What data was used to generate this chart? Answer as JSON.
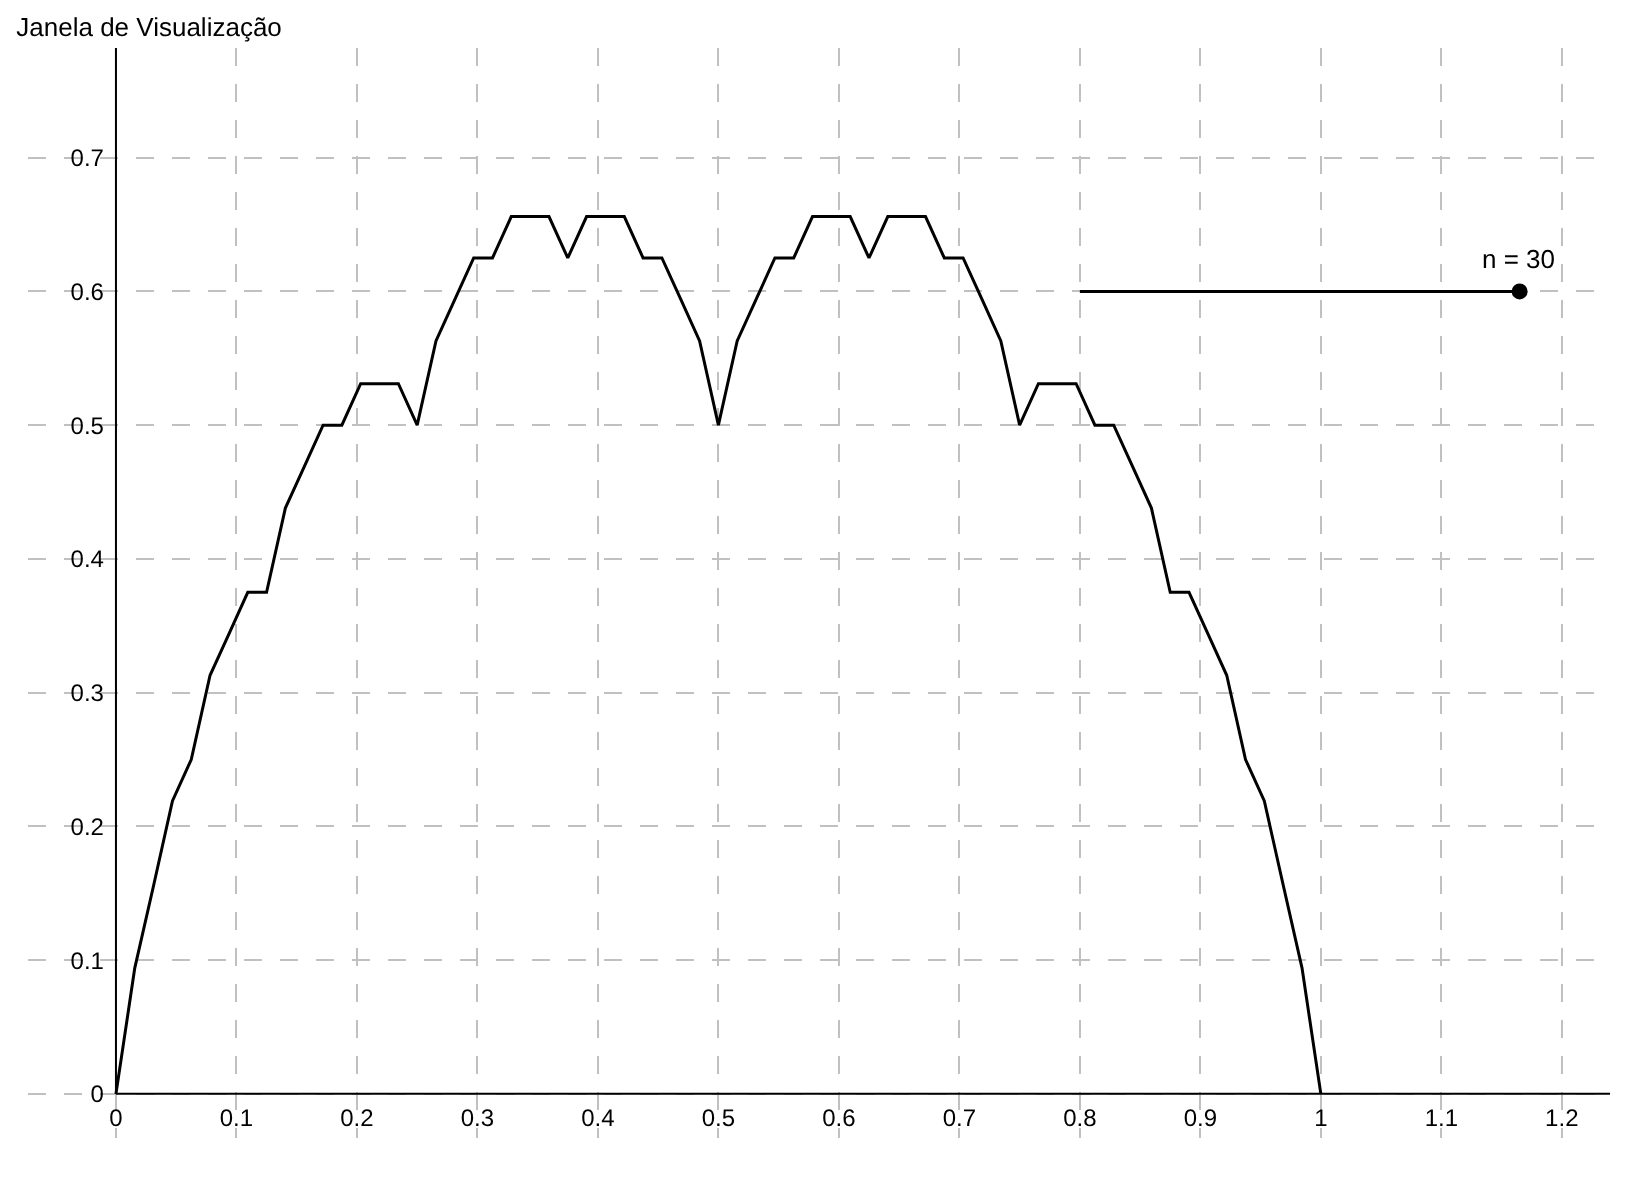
{
  "chart_data": {
    "type": "line",
    "title": "Janela de Visualização",
    "xlim": [
      -0.073,
      1.24
    ],
    "ylim": [
      -0.033,
      0.782
    ],
    "xticks": [
      0,
      0.1,
      0.2,
      0.3,
      0.4,
      0.5,
      0.6,
      0.7,
      0.8,
      0.9,
      1,
      1.1,
      1.2
    ],
    "yticks": [
      0,
      0.1,
      0.2,
      0.3,
      0.4,
      0.5,
      0.6,
      0.7
    ],
    "grid": true,
    "series": [
      {
        "type": "line",
        "color": "#000000",
        "line_style": "solid",
        "x": [
          0,
          0.0156,
          0.0313,
          0.0469,
          0.0625,
          0.0781,
          0.0938,
          0.1094,
          0.125,
          0.1406,
          0.1563,
          0.1719,
          0.1875,
          0.2031,
          0.2188,
          0.2344,
          0.25,
          0.2656,
          0.2813,
          0.2969,
          0.3125,
          0.3281,
          0.3438,
          0.3594,
          0.375,
          0.3906,
          0.4063,
          0.4219,
          0.4375,
          0.4531,
          0.4688,
          0.4844,
          0.5,
          0.5156,
          0.5313,
          0.5469,
          0.5625,
          0.5781,
          0.5938,
          0.6094,
          0.625,
          0.6406,
          0.6563,
          0.6719,
          0.6875,
          0.7031,
          0.7188,
          0.7344,
          0.75,
          0.7656,
          0.7813,
          0.7969,
          0.8125,
          0.8281,
          0.8438,
          0.8594,
          0.875,
          0.8906,
          0.9063,
          0.9219,
          0.9375,
          0.9531,
          0.9688,
          0.9844,
          1
        ],
        "values": [
          0,
          0.094,
          0.156,
          0.219,
          0.25,
          0.313,
          0.344,
          0.375,
          0.375,
          0.438,
          0.469,
          0.5,
          0.5,
          0.531,
          0.531,
          0.531,
          0.5,
          0.563,
          0.594,
          0.625,
          0.625,
          0.656,
          0.656,
          0.656,
          0.625,
          0.656,
          0.656,
          0.656,
          0.625,
          0.625,
          0.594,
          0.563,
          0.5,
          0.563,
          0.594,
          0.625,
          0.625,
          0.656,
          0.656,
          0.656,
          0.625,
          0.656,
          0.656,
          0.656,
          0.625,
          0.625,
          0.594,
          0.563,
          0.5,
          0.531,
          0.531,
          0.531,
          0.5,
          0.5,
          0.469,
          0.438,
          0.375,
          0.375,
          0.344,
          0.313,
          0.25,
          0.219,
          0.156,
          0.094,
          0
        ]
      },
      {
        "type": "line",
        "color": "#000000",
        "line_style": "solid",
        "x": [
          0.8,
          1.165
        ],
        "values": [
          0.6,
          0.6
        ]
      },
      {
        "type": "scatter",
        "color": "#000000",
        "marker": "circle",
        "x": [
          1.165
        ],
        "values": [
          0.6
        ]
      }
    ],
    "annotations": [
      {
        "text": "n = 30",
        "x": 1.165,
        "y": 0.6
      }
    ]
  }
}
